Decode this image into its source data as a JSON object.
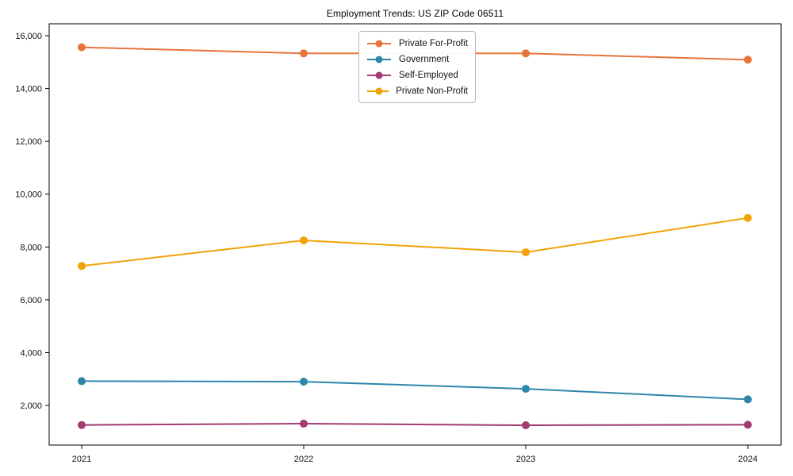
{
  "chart_data": {
    "type": "line",
    "title": "Employment Trends: US ZIP Code 06511",
    "x": [
      "2021",
      "2022",
      "2023",
      "2024"
    ],
    "series": [
      {
        "name": "Private For-Profit",
        "color": "#E8743B",
        "values": [
          15560,
          15330,
          15330,
          15090
        ]
      },
      {
        "name": "Government",
        "color": "#2E86AB",
        "values": [
          2920,
          2900,
          2630,
          2230
        ]
      },
      {
        "name": "Self-Employed",
        "color": "#A23B72",
        "values": [
          1260,
          1310,
          1250,
          1270
        ]
      },
      {
        "name": "Private Non-Profit",
        "color": "#F1A208",
        "values": [
          7280,
          8250,
          7800,
          9100
        ]
      }
    ],
    "xlabel": "",
    "ylabel": "",
    "ylim": [
      500,
      16450
    ],
    "yticks": [
      2000,
      4000,
      6000,
      8000,
      10000,
      12000,
      14000,
      16000
    ],
    "ytick_labels": [
      "2,000",
      "4,000",
      "6,000",
      "8,000",
      "10,000",
      "12,000",
      "14,000",
      "16,000"
    ],
    "xtick_labels": [
      "2021",
      "2022",
      "2023",
      "2024"
    ],
    "legend_position": "upper center",
    "grid": false,
    "frame_color": "#000000",
    "marker": "circle",
    "marker_radius": 5,
    "line_width": 2
  }
}
